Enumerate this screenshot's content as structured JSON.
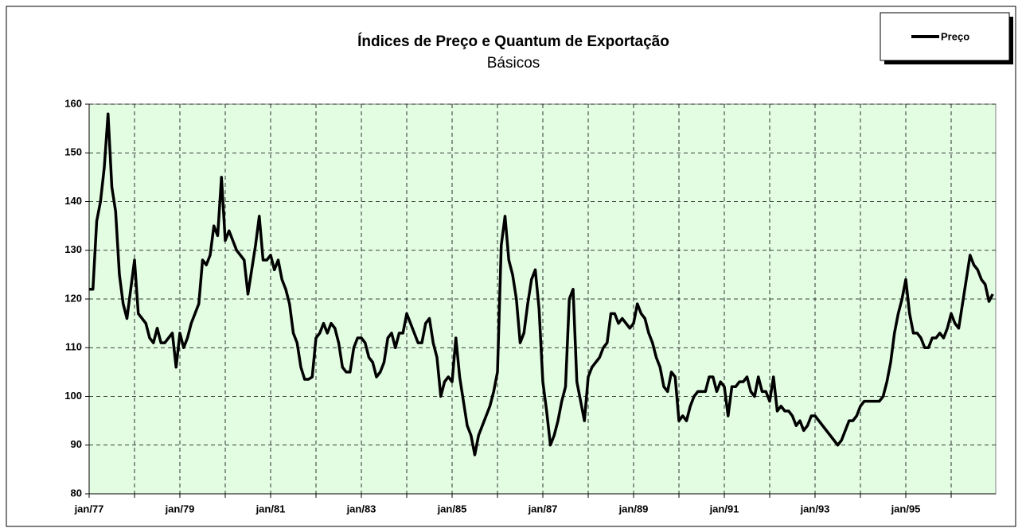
{
  "chart_data": {
    "type": "line",
    "title": "Índices de Preço e Quantum de Exportação",
    "subtitle": "Básicos",
    "categories": [
      "jan/77",
      null,
      null,
      null,
      null,
      null,
      null,
      null,
      null,
      null,
      null,
      null,
      null,
      null,
      null,
      null,
      null,
      null,
      null,
      null,
      null,
      null,
      null,
      null,
      "jan/79",
      null,
      null,
      null,
      null,
      null,
      null,
      null,
      null,
      null,
      null,
      null,
      null,
      null,
      null,
      null,
      null,
      null,
      null,
      null,
      null,
      null,
      null,
      null,
      "jan/81",
      null,
      null,
      null,
      null,
      null,
      null,
      null,
      null,
      null,
      null,
      null,
      null,
      null,
      null,
      null,
      null,
      null,
      null,
      null,
      null,
      null,
      null,
      null,
      "jan/83",
      null,
      null,
      null,
      null,
      null,
      null,
      null,
      null,
      null,
      null,
      null,
      null,
      null,
      null,
      null,
      null,
      null,
      null,
      null,
      null,
      null,
      null,
      null,
      "jan/85",
      null,
      null,
      null,
      null,
      null,
      null,
      null,
      null,
      null,
      null,
      null,
      null,
      null,
      null,
      null,
      null,
      null,
      null,
      null,
      null,
      null,
      null,
      null,
      "jan/87",
      null,
      null,
      null,
      null,
      null,
      null,
      null,
      null,
      null,
      null,
      null,
      null,
      null,
      null,
      null,
      null,
      null,
      null,
      null,
      null,
      null,
      null,
      null,
      "jan/89",
      null,
      null,
      null,
      null,
      null,
      null,
      null,
      null,
      null,
      null,
      null,
      null,
      null,
      null,
      null,
      null,
      null,
      null,
      null,
      null,
      null,
      null,
      null,
      "jan/91",
      null,
      null,
      null,
      null,
      null,
      null,
      null,
      null,
      null,
      null,
      null,
      null,
      null,
      null,
      null,
      null,
      null,
      null,
      null,
      null,
      null,
      null,
      null,
      "jan/93",
      null,
      null,
      null,
      null,
      null,
      null,
      null,
      null,
      null,
      null,
      null,
      null,
      null,
      null,
      null,
      null,
      null,
      null,
      null,
      null,
      null,
      null,
      null,
      "jan/95",
      null,
      null,
      null,
      null,
      null,
      null,
      null,
      null,
      null,
      null,
      null,
      null,
      null,
      null,
      null,
      null,
      null,
      null,
      null,
      null,
      null,
      null,
      null
    ],
    "series": [
      {
        "name": "Preço",
        "color": "#000000",
        "values": [
          122,
          122,
          136,
          140,
          147,
          158,
          143,
          138,
          125,
          119,
          116,
          122,
          128,
          117,
          116,
          115,
          112,
          111,
          114,
          111,
          111,
          112,
          113,
          106,
          113,
          110,
          112,
          115,
          117,
          119,
          128,
          127,
          129,
          135,
          133,
          145,
          132,
          134,
          132,
          130,
          129,
          128,
          121,
          126,
          131,
          137,
          128,
          128,
          129,
          126,
          128,
          124,
          122,
          119,
          113,
          111,
          106,
          103.5,
          103.5,
          104,
          112,
          113,
          115,
          113,
          115,
          114,
          111,
          106,
          105,
          105,
          110,
          112,
          112,
          111,
          108,
          107,
          104,
          105,
          107,
          112,
          113,
          110,
          113,
          113,
          117,
          115,
          113,
          111,
          111,
          115,
          116,
          111,
          108,
          100,
          103,
          104,
          103,
          112,
          104,
          99,
          94,
          92,
          88,
          92,
          94,
          96,
          98,
          101,
          105,
          131,
          137,
          128,
          125,
          120,
          111,
          113,
          119,
          124,
          126,
          118,
          103,
          97,
          90,
          92,
          95,
          99,
          102,
          120,
          122,
          103,
          99,
          95,
          104,
          106,
          107,
          108,
          110,
          111,
          117,
          117,
          115,
          116,
          115,
          114,
          115,
          119,
          117,
          116,
          113,
          111,
          108,
          106,
          102,
          101,
          105,
          104,
          95,
          96,
          95,
          98,
          100,
          101,
          101,
          101,
          104,
          104,
          101,
          103,
          102,
          96,
          102,
          102,
          103,
          103,
          104,
          101,
          100,
          104,
          101,
          101,
          99,
          104,
          97,
          98,
          97,
          97,
          96,
          94,
          95,
          93,
          94,
          96,
          96,
          95,
          94,
          93,
          92,
          91,
          90,
          91,
          93,
          95,
          95,
          96,
          98,
          99,
          99,
          99,
          99,
          99,
          100,
          103,
          107,
          113,
          117,
          120,
          124,
          117,
          113,
          113,
          112,
          110,
          110,
          112,
          112,
          113,
          112,
          114,
          117,
          115,
          114,
          119,
          124,
          129,
          127,
          126,
          124,
          123,
          119.5,
          121
        ]
      }
    ],
    "ylim": [
      80,
      160
    ],
    "yticks": [
      80,
      90,
      100,
      110,
      120,
      130,
      140,
      150,
      160
    ],
    "grid": true,
    "legend": "top-right"
  }
}
